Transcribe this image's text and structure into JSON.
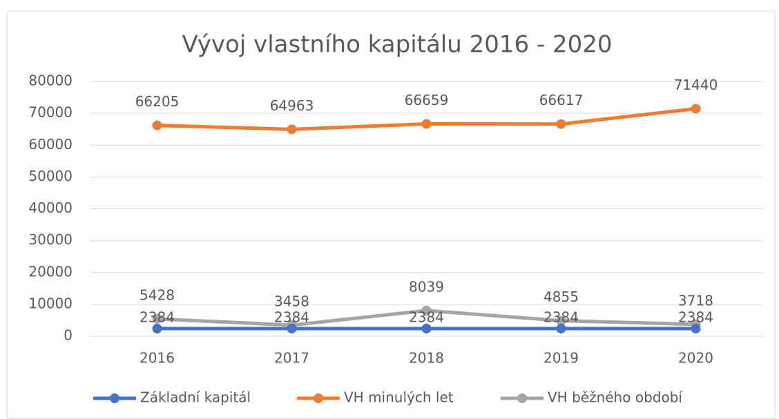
{
  "chart_data": {
    "type": "line",
    "title": "Vývoj vlastního kapitálu 2016 - 2020",
    "categories": [
      "2016",
      "2017",
      "2018",
      "2019",
      "2020"
    ],
    "series": [
      {
        "name": "Základní kapitál",
        "color": "#4472c4",
        "values": [
          2384,
          2384,
          2384,
          2384,
          2384
        ]
      },
      {
        "name": "VH minulých let",
        "color": "#ed7d31",
        "values": [
          66205,
          64963,
          66659,
          66617,
          71440
        ]
      },
      {
        "name": "VH běžného období",
        "color": "#a5a5a5",
        "values": [
          5428,
          3458,
          8039,
          4855,
          3718
        ]
      }
    ],
    "ylim": [
      0,
      80000
    ],
    "yticks": [
      0,
      10000,
      20000,
      30000,
      40000,
      50000,
      60000,
      70000,
      80000
    ],
    "grid": true,
    "legend": "bottom"
  }
}
